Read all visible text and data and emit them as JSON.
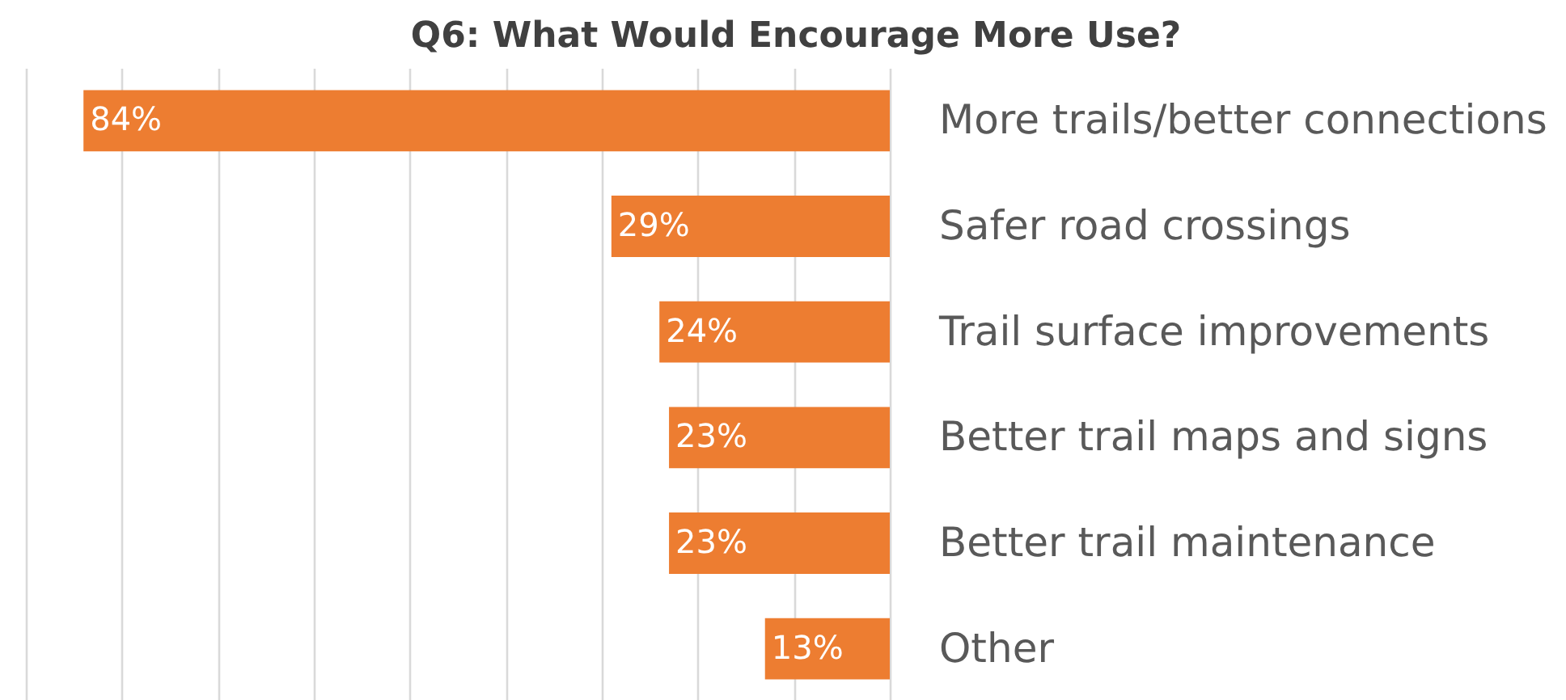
{
  "chart_data": {
    "type": "bar",
    "orientation": "horizontal",
    "title": "Q6: What Would Encourage More Use?",
    "categories": [
      "More trails/better connections",
      "Safer road crossings",
      "Trail surface improvements",
      "Better trail maps and signs",
      "Better trail maintenance",
      "Other"
    ],
    "values": [
      84,
      29,
      24,
      23,
      23,
      13
    ],
    "value_labels": [
      "84%",
      "29%",
      "24%",
      "23%",
      "23%",
      "13%"
    ],
    "color": "#ed7d31",
    "xlim": [
      90,
      0
    ],
    "xticks": [
      {
        "value": 0,
        "label": null
      },
      {
        "value": 10,
        "label": null
      },
      {
        "value": 20,
        "label": null
      },
      {
        "value": 30,
        "label": null
      },
      {
        "value": 40,
        "label": null
      },
      {
        "value": 50,
        "label": null
      },
      {
        "value": 60,
        "label": null
      },
      {
        "value": 70,
        "label": null
      },
      {
        "value": 80,
        "label": null
      },
      {
        "value": 90,
        "label": null
      }
    ],
    "tick_labels": "y",
    "grid": "x"
  }
}
